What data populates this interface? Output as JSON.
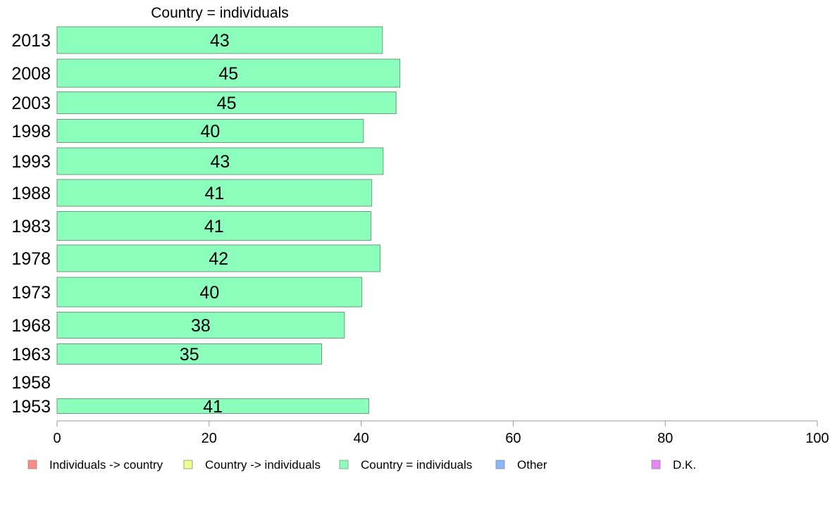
{
  "chart_data": {
    "type": "bar",
    "orientation": "horizontal",
    "title": "Country = individuals",
    "categories": [
      "2013",
      "2008",
      "2003",
      "1998",
      "1993",
      "1988",
      "1983",
      "1978",
      "1973",
      "1968",
      "1963",
      "1958",
      "1953"
    ],
    "values": [
      42.8,
      45.1,
      44.6,
      40.3,
      42.9,
      41.4,
      41.3,
      42.5,
      40.1,
      37.8,
      34.8,
      null,
      41.0
    ],
    "value_labels": [
      "43",
      "45",
      "45",
      "40",
      "43",
      "41",
      "41",
      "42",
      "40",
      "38",
      "35",
      "",
      "41"
    ],
    "xlim": [
      0,
      100
    ],
    "xticks": [
      0,
      20,
      40,
      60,
      80,
      100
    ],
    "xtick_labels": [
      "0",
      "20",
      "40",
      "60",
      "80",
      "100"
    ],
    "bar_color": "#8cffbd",
    "legend_position": "bottom",
    "legend": [
      {
        "label": "Individuals -> country",
        "color": "#fa8c84"
      },
      {
        "label": "Country -> individuals",
        "color": "#eaff8c"
      },
      {
        "label": "Country = individuals",
        "color": "#8cffbd"
      },
      {
        "label": "Other",
        "color": "#8cb6fa"
      },
      {
        "label": "D.K.",
        "color": "#ea84fa"
      }
    ]
  }
}
